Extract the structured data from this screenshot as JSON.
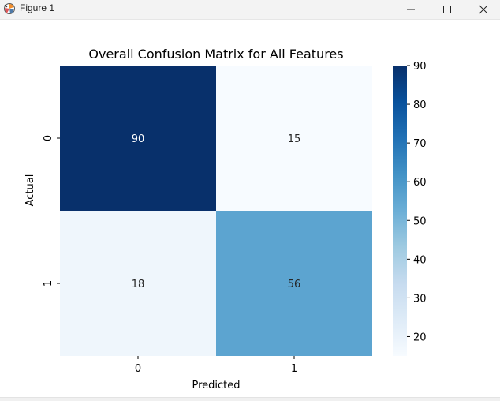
{
  "window": {
    "title": "Figure 1",
    "icons": {
      "app": "matplotlib-icon",
      "minimize": "minimize-icon",
      "maximize": "maximize-icon",
      "close": "close-icon"
    }
  },
  "chart_data": {
    "type": "heatmap",
    "title": "Overall Confusion Matrix for All Features",
    "xlabel": "Predicted",
    "ylabel": "Actual",
    "x_categories": [
      "0",
      "1"
    ],
    "y_categories": [
      "0",
      "1"
    ],
    "matrix": [
      [
        90,
        15
      ],
      [
        18,
        56
      ]
    ],
    "annotations": true,
    "colormap": "Blues",
    "colorbar": {
      "ticks": [
        "90",
        "80",
        "70",
        "60",
        "50",
        "40",
        "30",
        "20"
      ],
      "min": 15,
      "max": 90
    },
    "grid": false
  }
}
